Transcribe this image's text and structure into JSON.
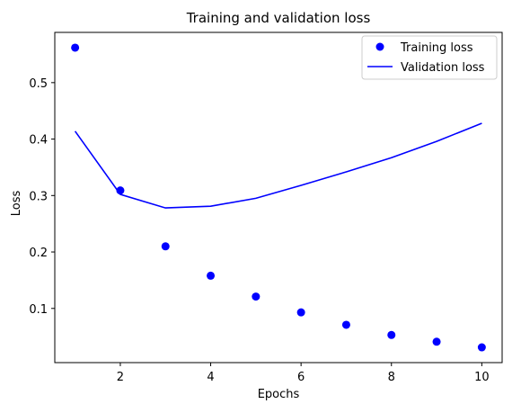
{
  "chart_data": {
    "type": "scatter",
    "title": "Training and validation loss",
    "xlabel": "Epochs",
    "ylabel": "Loss",
    "xlim": [
      0.55,
      10.45
    ],
    "ylim": [
      0.004,
      0.589
    ],
    "xticks": [
      2,
      4,
      6,
      8,
      10
    ],
    "xtick_labels": [
      "2",
      "4",
      "6",
      "8",
      "10"
    ],
    "yticks": [
      0.1,
      0.2,
      0.3,
      0.4,
      0.5
    ],
    "ytick_labels": [
      "0.1",
      "0.2",
      "0.3",
      "0.4",
      "0.5"
    ],
    "grid": false,
    "legend_position": "top-right",
    "series": [
      {
        "name": "Training loss",
        "kind": "markers",
        "color": "#0000ff",
        "x": [
          1,
          2,
          3,
          4,
          5,
          6,
          7,
          8,
          9,
          10
        ],
        "y": [
          0.562,
          0.309,
          0.21,
          0.158,
          0.121,
          0.093,
          0.071,
          0.053,
          0.041,
          0.031
        ]
      },
      {
        "name": "Validation loss",
        "kind": "line",
        "color": "#0000ff",
        "x": [
          1,
          2,
          3,
          4,
          5,
          6,
          7,
          8,
          9,
          10
        ],
        "y": [
          0.414,
          0.302,
          0.278,
          0.281,
          0.295,
          0.318,
          0.342,
          0.367,
          0.396,
          0.428
        ]
      }
    ]
  }
}
